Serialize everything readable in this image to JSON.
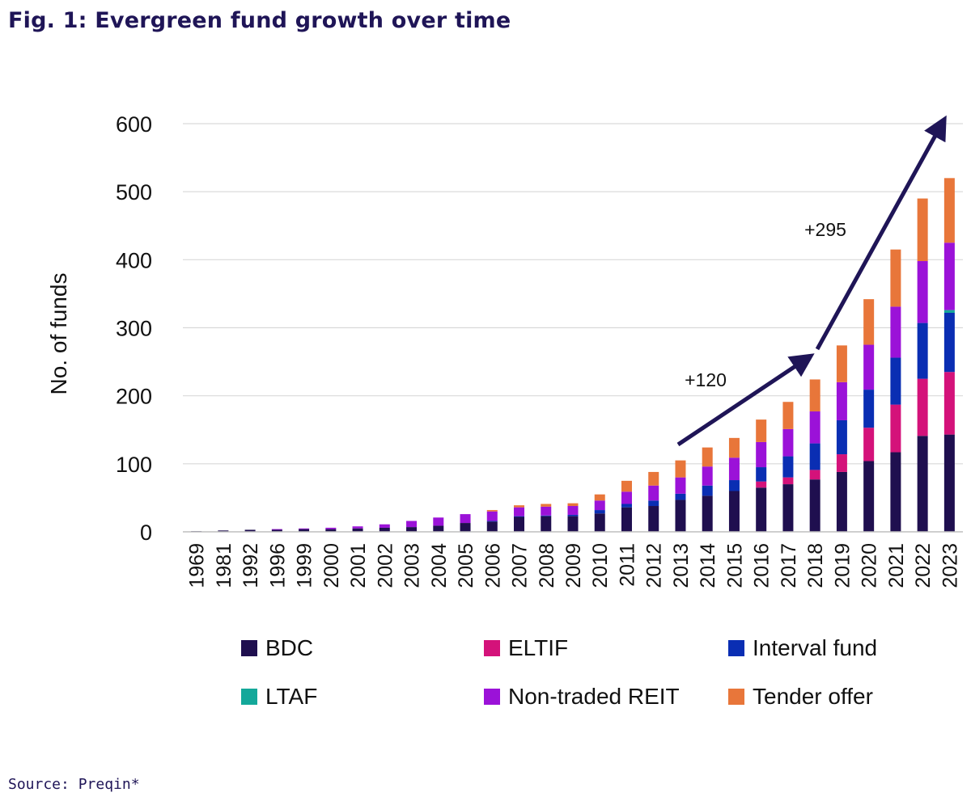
{
  "title": "Fig. 1: Evergreen fund growth over time",
  "source": "Source: Preqin*",
  "chart_data": {
    "type": "bar",
    "stacked": true,
    "ylabel": "No. of funds",
    "xlabel": "",
    "ylim": [
      0,
      600
    ],
    "yticks": [
      0,
      100,
      200,
      300,
      400,
      500,
      600
    ],
    "grid": true,
    "categories": [
      "1969",
      "1981",
      "1992",
      "1996",
      "1999",
      "2000",
      "2001",
      "2002",
      "2003",
      "2004",
      "2005",
      "2006",
      "2007",
      "2008",
      "2009",
      "2010",
      "2011",
      "2012",
      "2013",
      "2014",
      "2015",
      "2016",
      "2017",
      "2018",
      "2019",
      "2020",
      "2021",
      "2022",
      "2023"
    ],
    "series": [
      {
        "name": "BDC",
        "color": "#1f0f4f",
        "values": [
          1,
          2,
          3,
          3,
          4,
          4,
          5,
          6,
          7,
          9,
          13,
          15,
          22,
          23,
          23,
          27,
          36,
          38,
          47,
          53,
          60,
          65,
          70,
          77,
          88,
          104,
          117,
          141,
          143
        ]
      },
      {
        "name": "ELTIF",
        "color": "#d4127a",
        "values": [
          0,
          0,
          0,
          0,
          0,
          0,
          0,
          0,
          0,
          0,
          0,
          0,
          0,
          0,
          0,
          0,
          0,
          0,
          0,
          0,
          0,
          9,
          10,
          14,
          26,
          49,
          70,
          84,
          92
        ]
      },
      {
        "name": "Interval fund",
        "color": "#0a2eb3",
        "values": [
          0,
          0,
          0,
          0,
          0,
          0,
          0,
          0,
          0,
          0,
          0,
          1,
          1,
          1,
          2,
          5,
          5,
          8,
          9,
          15,
          16,
          21,
          31,
          39,
          50,
          56,
          69,
          82,
          87
        ]
      },
      {
        "name": "LTAF",
        "color": "#14a89a",
        "values": [
          0,
          0,
          0,
          0,
          0,
          0,
          0,
          0,
          0,
          0,
          0,
          0,
          0,
          0,
          0,
          0,
          0,
          0,
          0,
          0,
          0,
          0,
          0,
          0,
          0,
          0,
          0,
          0,
          4
        ]
      },
      {
        "name": "Non-traded REIT",
        "color": "#9b12d8",
        "values": [
          0,
          0,
          0,
          1,
          1,
          2,
          3,
          5,
          9,
          12,
          13,
          14,
          13,
          13,
          13,
          14,
          18,
          22,
          24,
          28,
          33,
          37,
          40,
          47,
          56,
          66,
          75,
          91,
          99
        ]
      },
      {
        "name": "Tender offer",
        "color": "#e8763a",
        "values": [
          0,
          0,
          0,
          0,
          0,
          0,
          0,
          0,
          0,
          0,
          0,
          2,
          3,
          4,
          4,
          9,
          16,
          20,
          25,
          28,
          29,
          33,
          40,
          47,
          54,
          67,
          84,
          92,
          95
        ]
      }
    ],
    "annotations": [
      {
        "text": "+120",
        "from": "2013",
        "to": "2018"
      },
      {
        "text": "+295",
        "from": "2018",
        "to": "2023"
      }
    ],
    "legend_position": "bottom"
  }
}
